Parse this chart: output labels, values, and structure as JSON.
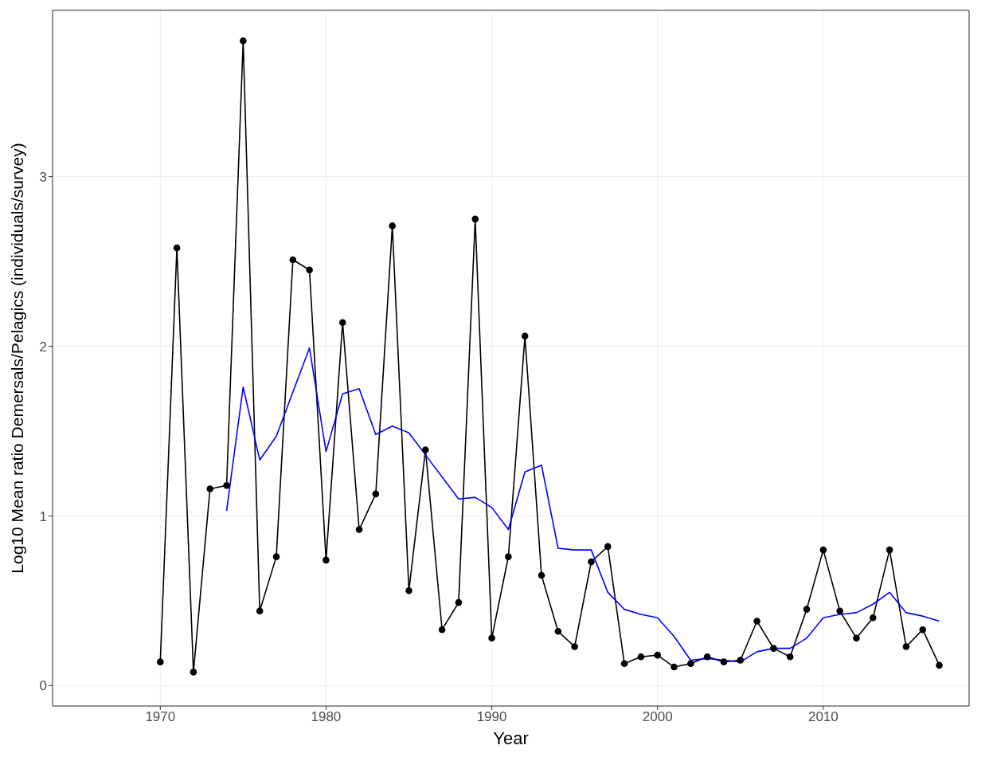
{
  "chart_data": {
    "type": "line",
    "xlabel": "Year",
    "ylabel": "Log10 Mean ratio Demersals/Pelagics (individuals/survey)",
    "x": [
      1970,
      1971,
      1972,
      1973,
      1974,
      1975,
      1976,
      1977,
      1978,
      1979,
      1980,
      1981,
      1982,
      1983,
      1984,
      1985,
      1986,
      1987,
      1988,
      1989,
      1990,
      1991,
      1992,
      1993,
      1994,
      1995,
      1996,
      1997,
      1998,
      1999,
      2000,
      2001,
      2002,
      2003,
      2004,
      2005,
      2006,
      2007,
      2008,
      2009,
      2010,
      2011,
      2012,
      2013,
      2014,
      2015,
      2016,
      2017
    ],
    "series": [
      {
        "color": "#000000",
        "marker": "circle",
        "values": [
          0.14,
          2.58,
          0.08,
          1.16,
          1.18,
          3.8,
          0.44,
          0.76,
          2.51,
          2.45,
          0.74,
          2.14,
          0.92,
          1.13,
          2.71,
          0.56,
          1.39,
          0.33,
          0.49,
          2.75,
          0.28,
          0.76,
          2.06,
          0.65,
          0.32,
          0.23,
          0.73,
          0.82,
          0.13,
          0.17,
          0.18,
          0.11,
          0.13,
          0.17,
          0.14,
          0.15,
          0.38,
          0.22,
          0.17,
          0.45,
          0.8,
          0.44,
          0.28,
          0.4,
          0.8,
          0.23,
          0.33,
          0.12
        ]
      },
      {
        "color": "#0000ff",
        "marker": "none",
        "values": [
          null,
          null,
          null,
          null,
          1.03,
          1.76,
          1.33,
          1.47,
          1.73,
          1.99,
          1.38,
          1.72,
          1.75,
          1.48,
          1.53,
          1.49,
          1.36,
          1.23,
          1.1,
          1.11,
          1.05,
          0.92,
          1.26,
          1.3,
          0.81,
          0.8,
          0.8,
          0.55,
          0.45,
          0.42,
          0.4,
          0.29,
          0.15,
          0.16,
          0.15,
          0.14,
          0.2,
          0.22,
          0.22,
          0.28,
          0.4,
          0.42,
          0.43,
          0.48,
          0.55,
          0.43,
          0.41,
          0.38
        ]
      }
    ],
    "xlim": [
      1963.5,
      2018.8
    ],
    "xticks": [
      1970,
      1980,
      1990,
      2000,
      2010
    ],
    "ylim": [
      -0.12,
      3.98
    ],
    "yticks": [
      0,
      1,
      2,
      3
    ],
    "grid": true,
    "line_style": "solid"
  }
}
